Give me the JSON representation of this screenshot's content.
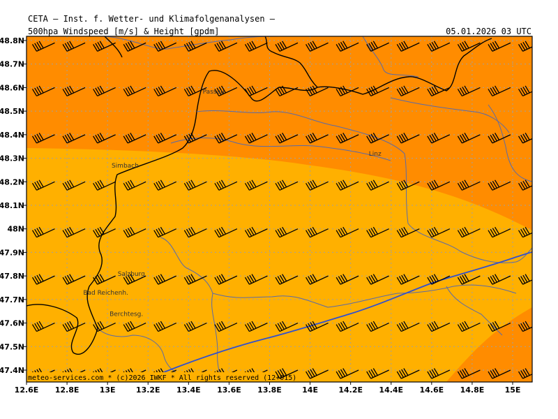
{
  "header": {
    "model": "CETA — Inst. f. Wetter- und Klimafolgenanalysen —",
    "field": "500hpa_Windspeed_[m/s]_&_Height_[gpdm]",
    "datetime": "05.01.2026 03 UTC"
  },
  "footer": "meteo-services.com * (c)2026 IWKF * All rights reserved (12+015)",
  "colors": {
    "orange_dark": "#ff8c00",
    "orange_light": "#ffb000",
    "coast_blue": "#3050d0",
    "border_gray": "#6070a0"
  },
  "map": {
    "lon_range": [
      12.6,
      15.1
    ],
    "lat_range": [
      47.35,
      48.83
    ],
    "lon_ticks": [
      {
        "v": 12.6,
        "label": "12.6E"
      },
      {
        "v": 12.8,
        "label": "12.8E"
      },
      {
        "v": 13.0,
        "label": "13E"
      },
      {
        "v": 13.2,
        "label": "13.2E"
      },
      {
        "v": 13.4,
        "label": "13.4E"
      },
      {
        "v": 13.6,
        "label": "13.6E"
      },
      {
        "v": 13.8,
        "label": "13.8E"
      },
      {
        "v": 14.0,
        "label": "14E"
      },
      {
        "v": 14.2,
        "label": "14.2E"
      },
      {
        "v": 14.4,
        "label": "14.4E"
      },
      {
        "v": 14.6,
        "label": "14.6E"
      },
      {
        "v": 14.8,
        "label": "14.8E"
      },
      {
        "v": 15.0,
        "label": "15E"
      }
    ],
    "lat_ticks": [
      {
        "v": 48.8,
        "label": "48.8N"
      },
      {
        "v": 48.7,
        "label": "48.7N"
      },
      {
        "v": 48.6,
        "label": "48.6N"
      },
      {
        "v": 48.5,
        "label": "48.5N"
      },
      {
        "v": 48.4,
        "label": "48.4N"
      },
      {
        "v": 48.3,
        "label": "48.3N"
      },
      {
        "v": 48.2,
        "label": "48.2N"
      },
      {
        "v": 48.1,
        "label": "48.1N"
      },
      {
        "v": 48.0,
        "label": "48N"
      },
      {
        "v": 47.9,
        "label": "47.9N"
      },
      {
        "v": 47.8,
        "label": "47.8N"
      },
      {
        "v": 47.7,
        "label": "47.7N"
      },
      {
        "v": 47.6,
        "label": "47.6N"
      },
      {
        "v": 47.5,
        "label": "47.5N"
      },
      {
        "v": 47.4,
        "label": "47.4N"
      }
    ],
    "cities": [
      {
        "name": "Passau",
        "lon": 13.47,
        "lat": 48.575
      },
      {
        "name": "Linz",
        "lon": 14.29,
        "lat": 48.31
      },
      {
        "name": "Simbach",
        "lon": 13.02,
        "lat": 48.26
      },
      {
        "name": "Salzburg",
        "lon": 13.05,
        "lat": 47.8
      },
      {
        "name": "Bad Reichenh.",
        "lon": 12.88,
        "lat": 47.72
      },
      {
        "name": "Berchtesg.",
        "lon": 13.01,
        "lat": 47.63
      }
    ],
    "wind_barb": {
      "direction": "west-southwest",
      "speed_class": "strong (about 35-40 m/s)"
    },
    "barbs_lon": [
      12.65,
      12.8,
      12.95,
      13.1,
      13.25,
      13.4,
      13.55,
      13.7,
      13.85,
      14.0,
      14.15,
      14.3,
      14.45,
      14.6,
      14.75,
      14.9,
      15.05
    ],
    "barbs_lat": [
      48.79,
      48.6,
      48.4,
      48.2,
      48.0,
      47.8,
      47.6,
      47.4
    ]
  }
}
